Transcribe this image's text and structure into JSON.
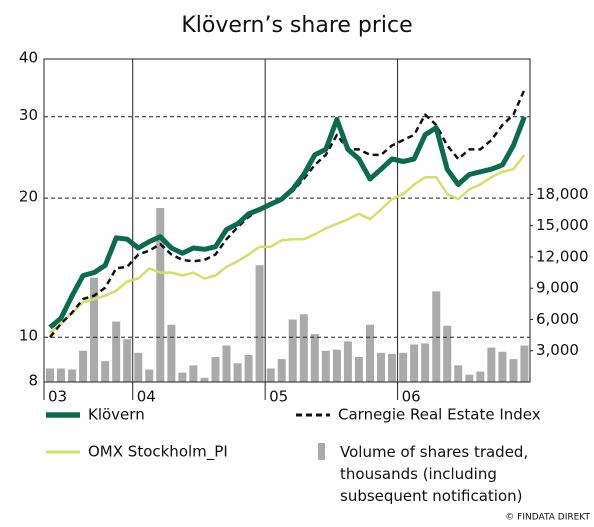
{
  "chart_data": {
    "type": "line",
    "title": "Klövern’s share price",
    "x": [
      2003.375,
      2003.458,
      2003.542,
      2003.625,
      2003.708,
      2003.792,
      2003.875,
      2003.958,
      2004.042,
      2004.125,
      2004.208,
      2004.292,
      2004.375,
      2004.458,
      2004.542,
      2004.625,
      2004.708,
      2004.792,
      2004.875,
      2004.958,
      2005.042,
      2005.125,
      2005.208,
      2005.292,
      2005.375,
      2005.458,
      2005.542,
      2005.625,
      2005.708,
      2005.792,
      2005.875,
      2005.958,
      2006.042,
      2006.125,
      2006.208,
      2006.292,
      2006.375,
      2006.458,
      2006.542,
      2006.625,
      2006.708,
      2006.792,
      2006.875,
      2006.958
    ],
    "series": [
      {
        "name": "Klövern",
        "color": "#0b6b4f",
        "width": 5,
        "values": [
          10.5,
          11.0,
          12.3,
          13.6,
          13.8,
          14.3,
          16.4,
          16.3,
          15.6,
          16.1,
          16.5,
          15.6,
          15.2,
          15.6,
          15.5,
          15.7,
          17.1,
          17.6,
          18.5,
          18.9,
          19.4,
          19.9,
          20.9,
          22.5,
          24.8,
          25.5,
          29.6,
          25.5,
          24.3,
          22.0,
          23.1,
          24.3,
          24.0,
          24.3,
          27.4,
          28.4,
          23.1,
          21.4,
          22.5,
          22.8,
          23.1,
          23.6,
          26.0,
          30.0
        ]
      },
      {
        "name": "Carnegie Real Estate Index",
        "color": "#111111",
        "width": 2.5,
        "dashed": true,
        "values": [
          10.0,
          10.7,
          11.3,
          12.1,
          12.3,
          12.8,
          14.1,
          14.2,
          15.1,
          15.4,
          15.9,
          15.1,
          14.7,
          14.6,
          14.7,
          15.1,
          16.3,
          17.3,
          18.2,
          18.9,
          19.4,
          19.9,
          20.7,
          22.0,
          23.6,
          24.8,
          27.4,
          25.5,
          25.5,
          24.8,
          24.8,
          26.0,
          26.7,
          27.4,
          30.3,
          28.8,
          26.0,
          24.3,
          25.5,
          25.5,
          26.7,
          28.8,
          30.3,
          34.3
        ]
      },
      {
        "name": "OMX Stockholm_PI",
        "color": "#d6de6a",
        "width": 2.5,
        "values": [
          10.2,
          10.7,
          11.3,
          11.9,
          12.1,
          12.3,
          12.6,
          13.2,
          13.4,
          14.1,
          13.8,
          13.8,
          13.6,
          13.8,
          13.4,
          13.6,
          14.2,
          14.6,
          15.1,
          15.7,
          15.7,
          16.2,
          16.3,
          16.3,
          16.7,
          17.2,
          17.6,
          18.0,
          18.5,
          18.0,
          18.9,
          19.9,
          20.4,
          21.4,
          22.2,
          22.2,
          20.4,
          19.9,
          20.9,
          21.4,
          22.2,
          22.8,
          23.1,
          24.8
        ]
      },
      {
        "name": "Volume of shares traded, thousands (including subsequent notification)",
        "color": "#aaaaaa",
        "axis": "y2",
        "kind": "bar",
        "values": [
          1300,
          1300,
          1200,
          3000,
          10000,
          2000,
          5800,
          4100,
          2800,
          1200,
          16700,
          5500,
          900,
          1600,
          400,
          2400,
          3500,
          1800,
          2600,
          11200,
          1300,
          2200,
          6000,
          6500,
          4600,
          3000,
          3100,
          3900,
          2400,
          5500,
          2800,
          2700,
          2800,
          3600,
          3700,
          8700,
          5400,
          1600,
          700,
          1000,
          3300,
          2900,
          2200,
          3500
        ]
      }
    ],
    "xlim": [
      2003.33,
      2007.0
    ],
    "xticks": [
      {
        "value": 2003.33,
        "label": "03"
      },
      {
        "value": 2004,
        "label": "04"
      },
      {
        "value": 2005,
        "label": "05"
      },
      {
        "value": 2006,
        "label": "06"
      }
    ],
    "ylim": [
      8,
      40
    ],
    "yscale": "log",
    "yticks": [
      8,
      10,
      20,
      30,
      40
    ],
    "y2lim": [
      0,
      31000
    ],
    "y2ticks": [
      {
        "value": 3000,
        "label": "3,000"
      },
      {
        "value": 6000,
        "label": "6,000"
      },
      {
        "value": 9000,
        "label": "9,000"
      },
      {
        "value": 12000,
        "label": "12,000"
      },
      {
        "value": 15000,
        "label": "15,000"
      },
      {
        "value": 18000,
        "label": "18,000"
      }
    ],
    "grid": true,
    "legend": "bottom",
    "source": "© FINDATA DIREKT"
  }
}
